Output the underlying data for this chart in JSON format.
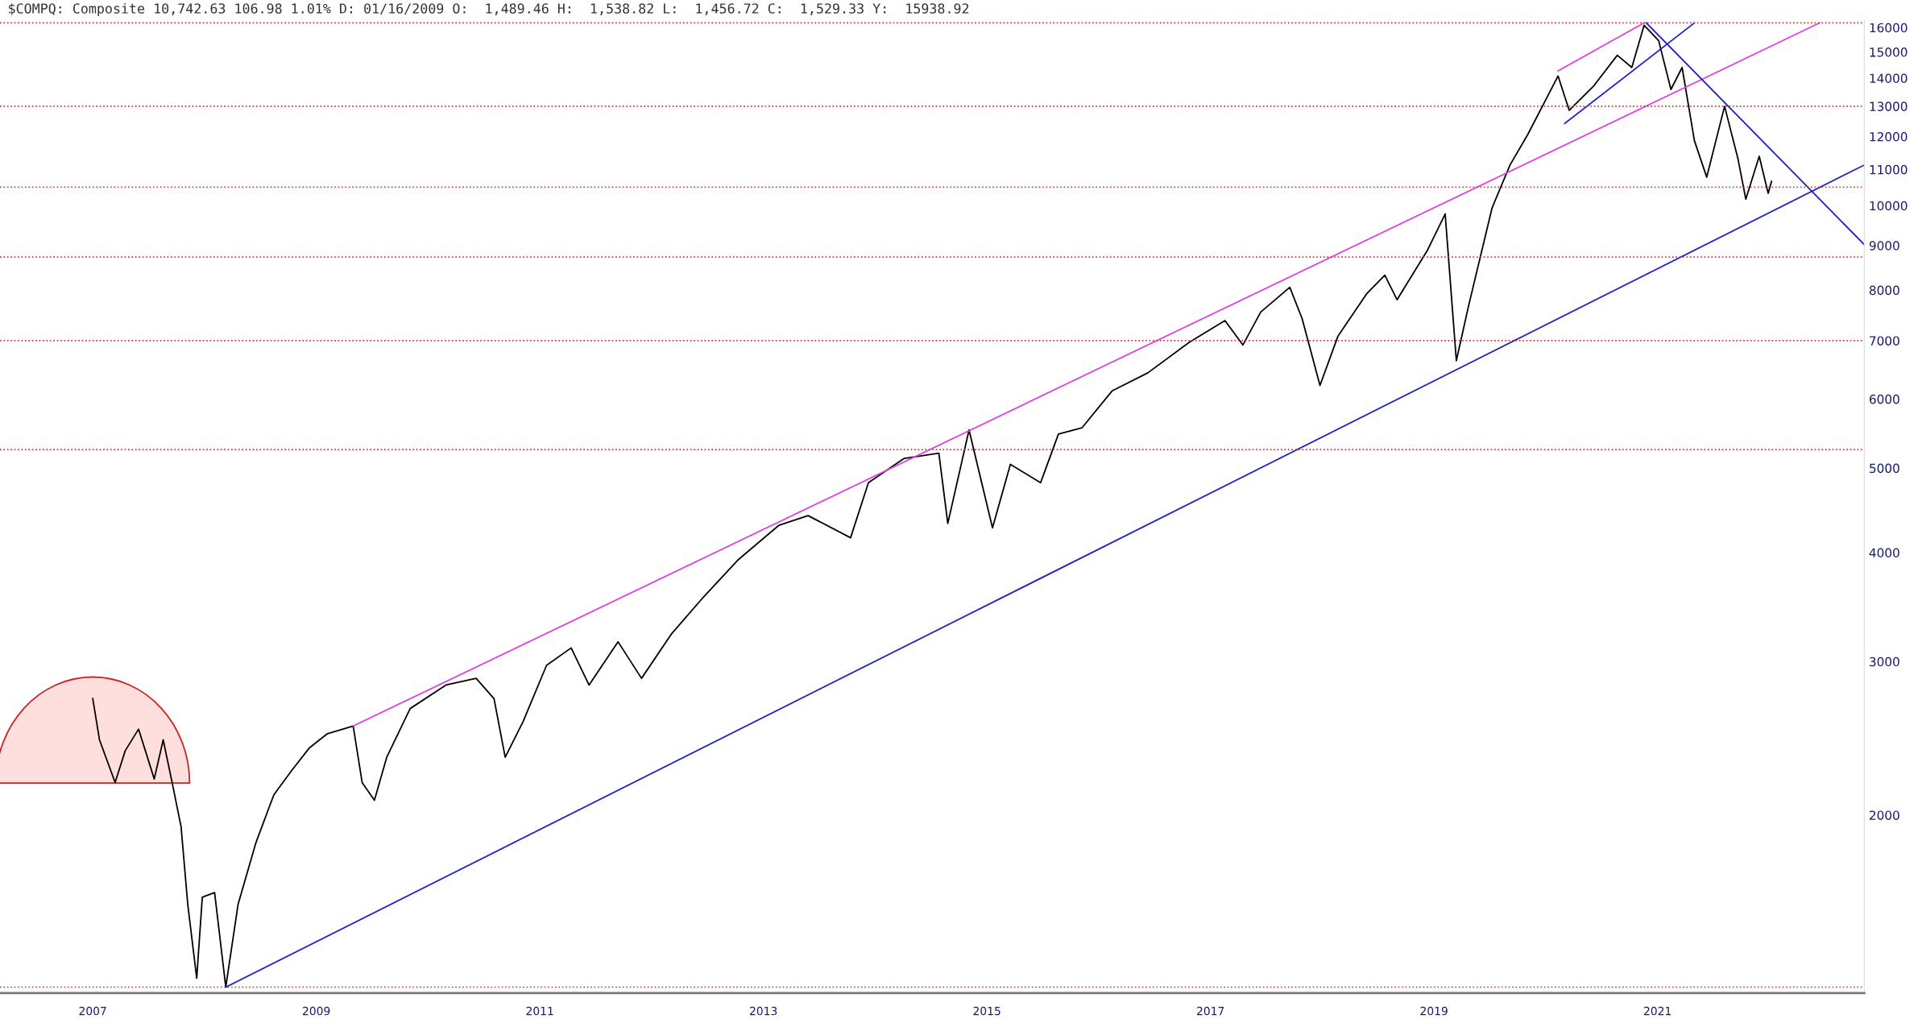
{
  "chart_data": {
    "type": "line",
    "title": "$COMPQ: Composite 10,742.63 106.98 1.01% D: 01/16/2009 O:  1,489.46 H:  1,538.82 L:  1,456.72 C:  1,529.33 Y:  15938.92",
    "log": "y",
    "grid": false,
    "line_style": "solid",
    "tick_labels": "xy",
    "xlim": [
      2006.17,
      2022.85
    ],
    "xticks": [
      2007,
      2009,
      2011,
      2013,
      2015,
      2017,
      2019,
      2021
    ],
    "ylim": [
      1250,
      16300
    ],
    "yticks": [
      2000,
      3000,
      4000,
      5000,
      6000,
      7000,
      8000,
      9000,
      10000,
      11000,
      12000,
      13000,
      14000,
      15000,
      16000
    ],
    "series": [
      {
        "color": "#000000",
        "x": [
          2007.0,
          2007.06,
          2007.2,
          2007.29,
          2007.41,
          2007.55,
          2007.63,
          2007.71,
          2007.79,
          2007.85,
          2007.93,
          2007.98,
          2008.09,
          2008.19,
          2008.3,
          2008.46,
          2008.62,
          2008.78,
          2008.94,
          2009.1,
          2009.33,
          2009.41,
          2009.52,
          2009.63,
          2009.84,
          2010.16,
          2010.43,
          2010.59,
          2010.69,
          2010.85,
          2011.06,
          2011.28,
          2011.44,
          2011.7,
          2011.91,
          2012.18,
          2012.45,
          2012.77,
          2013.14,
          2013.4,
          2013.78,
          2013.94,
          2014.26,
          2014.57,
          2014.65,
          2014.84,
          2015.05,
          2015.21,
          2015.48,
          2015.64,
          2015.85,
          2016.12,
          2016.44,
          2016.81,
          2017.13,
          2017.29,
          2017.45,
          2017.71,
          2017.82,
          2017.98,
          2018.14,
          2018.4,
          2018.56,
          2018.67,
          2018.94,
          2019.1,
          2019.2,
          2019.31,
          2019.52,
          2019.68,
          2019.84,
          2020.11,
          2020.21,
          2020.43,
          2020.64,
          2020.77,
          2020.88,
          2021.01,
          2021.12,
          2021.22,
          2021.33,
          2021.44,
          2021.6,
          2021.72,
          2021.79,
          2021.91,
          2021.99,
          2022.02
        ],
        "values": [
          2720,
          2440,
          2180,
          2370,
          2510,
          2200,
          2440,
          2180,
          1940,
          1580,
          1300,
          1610,
          1630,
          1270,
          1580,
          1860,
          2110,
          2250,
          2390,
          2480,
          2530,
          2180,
          2080,
          2330,
          2650,
          2820,
          2870,
          2720,
          2330,
          2560,
          2970,
          3110,
          2820,
          3160,
          2870,
          3230,
          3540,
          3920,
          4300,
          4410,
          4160,
          4810,
          5130,
          5200,
          4320,
          5530,
          4270,
          5050,
          4810,
          5470,
          5560,
          6130,
          6430,
          6970,
          7380,
          6920,
          7550,
          8060,
          7420,
          6220,
          7080,
          7930,
          8320,
          7800,
          8880,
          9780,
          6640,
          7680,
          9940,
          11130,
          12070,
          14080,
          12860,
          13720,
          14870,
          14400,
          16100,
          15460,
          13590,
          14400,
          11870,
          10780,
          13000,
          11310,
          10170,
          11390,
          10330,
          10660
        ]
      },
      {
        "type": "line",
        "color": "#2020c8",
        "x": [
          2008.19,
          2022.85
        ],
        "values": [
          1270,
          11130
        ]
      },
      {
        "type": "line",
        "color": "#e040e0",
        "x": [
          2009.33,
          2022.45
        ],
        "values": [
          2530,
          16200
        ]
      },
      {
        "type": "line",
        "color": "#e040e0",
        "x": [
          2020.11,
          2020.88
        ],
        "values": [
          14270,
          16200
        ]
      },
      {
        "type": "line",
        "color": "#2020c8",
        "x": [
          2020.17,
          2021.33
        ],
        "values": [
          12420,
          16200
        ]
      },
      {
        "type": "line",
        "color": "#2020c8",
        "x": [
          2020.9,
          2022.85
        ],
        "values": [
          16200,
          9020
        ]
      }
    ],
    "ref_lines": [
      {
        "axis": "y",
        "value": 16200,
        "color": "#cc3333",
        "line_style": "dotted"
      },
      {
        "axis": "y",
        "value": 13000,
        "color": "#cc3333",
        "line_style": "dotted"
      },
      {
        "axis": "y",
        "value": 10500,
        "color": "#cc3333",
        "line_style": "dotted"
      },
      {
        "axis": "y",
        "value": 8730,
        "color": "#cc3333",
        "line_style": "dotted"
      },
      {
        "axis": "y",
        "value": 7000,
        "color": "#cc3333",
        "line_style": "dotted"
      },
      {
        "axis": "y",
        "value": 5250,
        "color": "#cc3333",
        "line_style": "dotted"
      },
      {
        "axis": "y",
        "value": 1270,
        "color": "#cc3333",
        "line_style": "dotted"
      }
    ]
  }
}
